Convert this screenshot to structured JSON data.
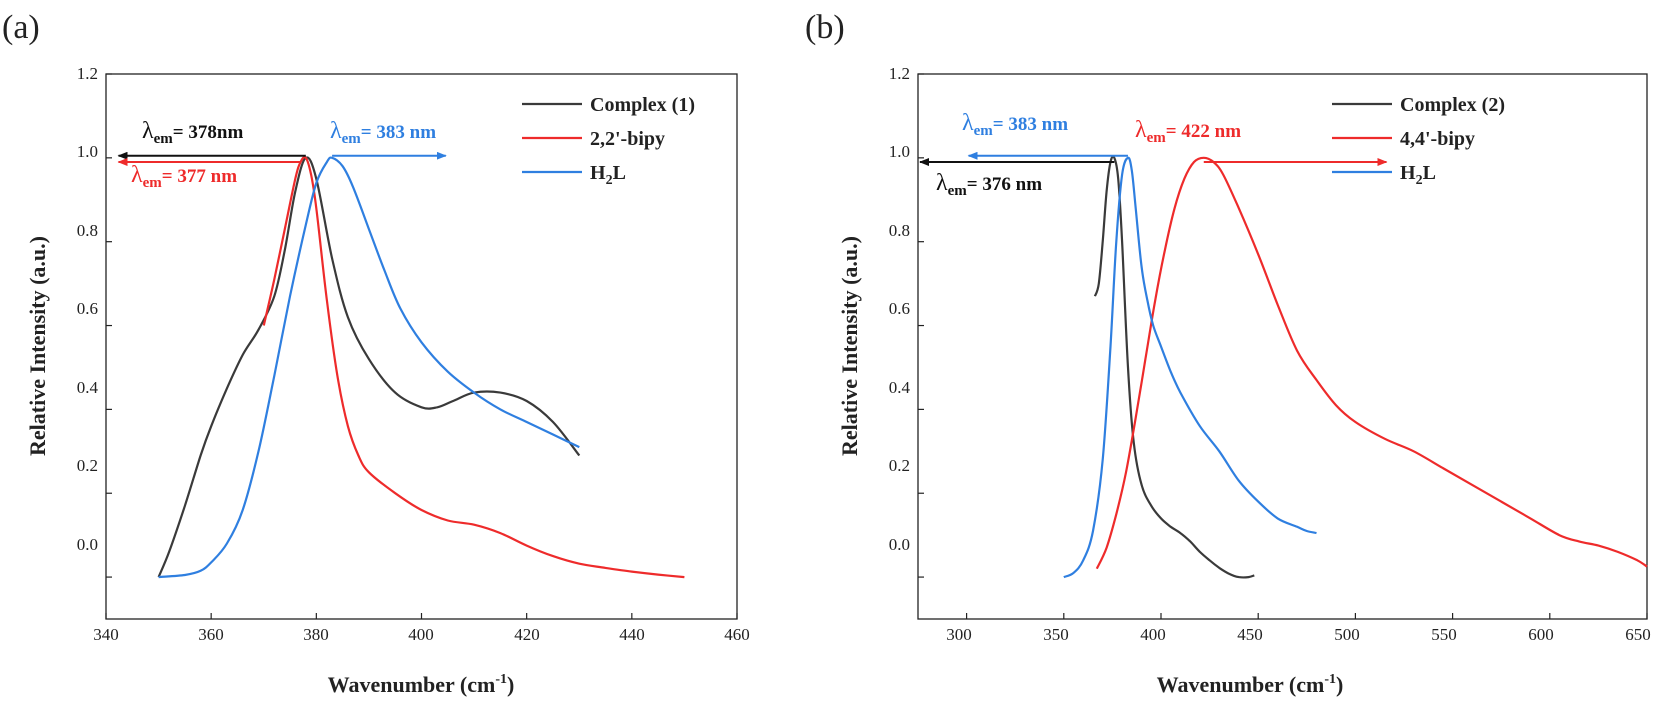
{
  "chart_data": [
    {
      "type": "line",
      "panel_label": "(a)",
      "xlabel": "Wavenumber (cm",
      "xlabel_sup": "-1",
      "xlabel_end": ")",
      "ylabel": "Relative Intensity (a.u.)",
      "xlim": [
        340,
        460
      ],
      "ylim": [
        -0.1,
        1.2
      ],
      "xticks": [
        340,
        360,
        380,
        400,
        420,
        440,
        460
      ],
      "yticks": [
        0.0,
        0.2,
        0.4,
        0.6,
        0.8,
        1.0,
        1.2
      ],
      "xtick_labels": [
        "340",
        "360",
        "380",
        "400",
        "420",
        "440",
        "460"
      ],
      "ytick_labels": [
        "0.0",
        "0.2",
        "0.4",
        "0.6",
        "0.8",
        "1.0",
        "1.2"
      ],
      "legend_position": "top-right",
      "series": [
        {
          "name": "Complex (1)",
          "label_main": "Complex (1)",
          "color": "#3a3a3a",
          "x": [
            350,
            352,
            355,
            358,
            360,
            363,
            366,
            369,
            372,
            374,
            376,
            378,
            380,
            383,
            386,
            390,
            395,
            400,
            403,
            406,
            410,
            415,
            420,
            425,
            430
          ],
          "y": [
            0.0,
            0.06,
            0.17,
            0.29,
            0.36,
            0.45,
            0.53,
            0.59,
            0.67,
            0.78,
            0.92,
            1.0,
            0.95,
            0.76,
            0.62,
            0.52,
            0.44,
            0.405,
            0.405,
            0.42,
            0.44,
            0.44,
            0.42,
            0.37,
            0.29
          ]
        },
        {
          "name": "2,2'-bipy",
          "label_main": "2,2'-bipy",
          "color": "#ee2b2b",
          "x": [
            370,
            372,
            374,
            376,
            377,
            378,
            379,
            380,
            382,
            384,
            386,
            388,
            390,
            395,
            400,
            405,
            410,
            415,
            420,
            425,
            430,
            435,
            440,
            445,
            450
          ],
          "y": [
            0.6,
            0.71,
            0.83,
            0.95,
            0.99,
            1.0,
            0.96,
            0.88,
            0.66,
            0.48,
            0.36,
            0.29,
            0.25,
            0.2,
            0.16,
            0.135,
            0.125,
            0.105,
            0.075,
            0.05,
            0.032,
            0.022,
            0.013,
            0.006,
            0.0
          ]
        },
        {
          "name": "H2L",
          "label_main": "H",
          "label_sub": "2",
          "label_end": "L",
          "color": "#2f7fe0",
          "x": [
            350,
            355,
            358,
            360,
            363,
            366,
            369,
            372,
            375,
            378,
            380,
            382,
            383,
            385,
            387,
            390,
            393,
            396,
            400,
            405,
            410,
            415,
            420,
            425,
            430
          ],
          "y": [
            0.0,
            0.005,
            0.015,
            0.035,
            0.08,
            0.16,
            0.3,
            0.48,
            0.67,
            0.84,
            0.94,
            0.99,
            1.0,
            0.98,
            0.93,
            0.83,
            0.73,
            0.64,
            0.56,
            0.49,
            0.44,
            0.4,
            0.37,
            0.34,
            0.31
          ]
        }
      ],
      "annotations": [
        {
          "lambda": "λ",
          "sub": "em",
          "text": "= 378nm",
          "color": "#111111",
          "arrow_from_x": 378,
          "arrow_to_x": 342,
          "y": 1.005
        },
        {
          "lambda": "λ",
          "sub": "em",
          "text": "= 377 nm",
          "color": "#ee2b2b",
          "arrow_from_x": 377,
          "arrow_to_x": 342,
          "y": 0.99
        },
        {
          "lambda": "λ",
          "sub": "em",
          "text": "= 383 nm",
          "color": "#2f7fe0",
          "arrow_from_x": 383,
          "arrow_to_x": 405,
          "y": 1.005
        }
      ]
    },
    {
      "type": "line",
      "panel_label": "(b)",
      "xlabel": "Wavenumber (cm",
      "xlabel_sup": "-1",
      "xlabel_end": ")",
      "ylabel": "Relative Intensity (a.u.)",
      "xlim": [
        275,
        650
      ],
      "ylim": [
        -0.1,
        1.2
      ],
      "xticks": [
        300,
        350,
        400,
        450,
        500,
        550,
        600,
        650
      ],
      "yticks": [
        0.0,
        0.2,
        0.4,
        0.6,
        0.8,
        1.0,
        1.2
      ],
      "xtick_labels": [
        "300",
        "350",
        "400",
        "450",
        "500",
        "550",
        "600",
        "650"
      ],
      "ytick_labels": [
        "0.0",
        "0.2",
        "0.4",
        "0.6",
        "0.8",
        "1.0",
        "1.2"
      ],
      "legend_position": "top-right",
      "series": [
        {
          "name": "Complex (2)",
          "label_main": "Complex (2)",
          "color": "#3a3a3a",
          "x": [
            366,
            368,
            370,
            372,
            374,
            376,
            378,
            380,
            383,
            386,
            390,
            395,
            400,
            405,
            410,
            415,
            420,
            425,
            430,
            435,
            440,
            445,
            448
          ],
          "y": [
            0.67,
            0.7,
            0.8,
            0.92,
            0.99,
            1.0,
            0.95,
            0.8,
            0.5,
            0.32,
            0.22,
            0.17,
            0.14,
            0.12,
            0.105,
            0.085,
            0.06,
            0.04,
            0.022,
            0.008,
            0.0,
            0.0,
            0.004
          ]
        },
        {
          "name": "4,4'-bipy",
          "label_main": "4,4'-bipy",
          "color": "#ee2b2b",
          "x": [
            367,
            372,
            377,
            382,
            387,
            392,
            397,
            402,
            407,
            412,
            417,
            422,
            427,
            432,
            440,
            450,
            460,
            470,
            480,
            490,
            500,
            515,
            530,
            545,
            560,
            575,
            590,
            605,
            615,
            625,
            635,
            645,
            650
          ],
          "y": [
            0.02,
            0.07,
            0.15,
            0.25,
            0.38,
            0.52,
            0.66,
            0.78,
            0.88,
            0.95,
            0.99,
            1.0,
            0.99,
            0.96,
            0.88,
            0.77,
            0.65,
            0.54,
            0.47,
            0.41,
            0.37,
            0.33,
            0.3,
            0.26,
            0.22,
            0.18,
            0.14,
            0.1,
            0.085,
            0.075,
            0.06,
            0.04,
            0.025
          ]
        },
        {
          "name": "H2L",
          "label_main": "H",
          "label_sub": "2",
          "label_end": "L",
          "color": "#2f7fe0",
          "x": [
            350,
            355,
            360,
            365,
            370,
            374,
            377,
            380,
            383,
            385,
            387,
            390,
            393,
            396,
            400,
            405,
            410,
            420,
            430,
            440,
            450,
            460,
            470,
            475,
            480
          ],
          "y": [
            0.0,
            0.01,
            0.04,
            0.11,
            0.28,
            0.55,
            0.8,
            0.96,
            1.0,
            0.97,
            0.88,
            0.74,
            0.66,
            0.6,
            0.55,
            0.49,
            0.44,
            0.36,
            0.3,
            0.23,
            0.18,
            0.14,
            0.12,
            0.11,
            0.105
          ]
        }
      ],
      "annotations": [
        {
          "lambda": "λ",
          "sub": "em",
          "text": "= 383 nm",
          "color": "#2f7fe0",
          "arrow_from_x": 383,
          "arrow_to_x": 300,
          "y": 1.005
        },
        {
          "lambda": "λ",
          "sub": "em",
          "text": "= 422 nm",
          "color": "#ee2b2b",
          "arrow_from_x": 422,
          "arrow_to_x": 517,
          "y": 0.99
        },
        {
          "lambda": "λ",
          "sub": "em",
          "text": "= 376 nm",
          "color": "#111111",
          "arrow_from_x": 376,
          "arrow_to_x": 275,
          "y": 0.99
        }
      ]
    }
  ]
}
